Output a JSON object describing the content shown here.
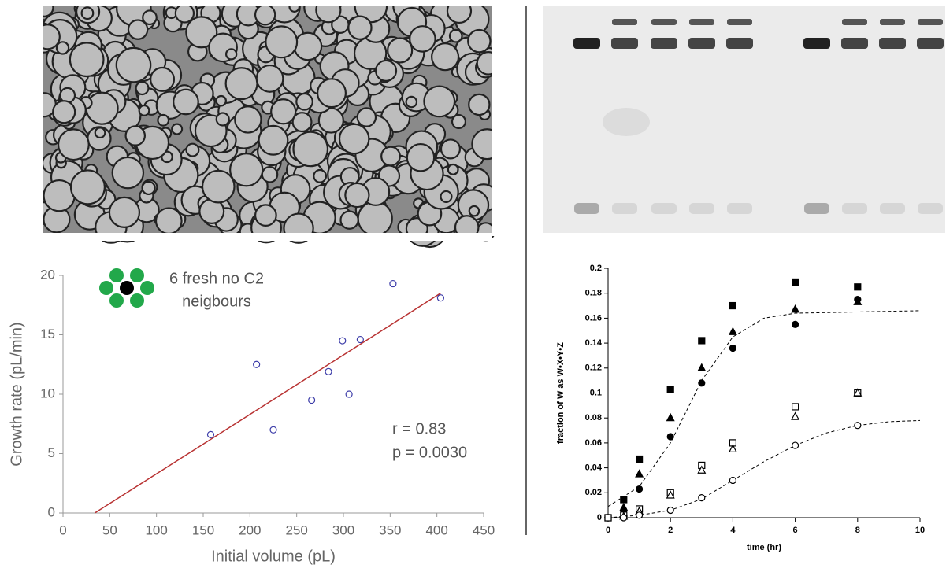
{
  "chart_data": [
    {
      "type": "scatter",
      "xlabel": "Initial volume (pL)",
      "ylabel": "Growth rate (pL/min)",
      "annotation": [
        "6 fresh no C2",
        "neigbours"
      ],
      "stats": [
        "r = 0.83",
        "p = 0.0030"
      ],
      "x": [
        158,
        207,
        225,
        266,
        284,
        299,
        306,
        318,
        353,
        404
      ],
      "values": [
        6.6,
        12.5,
        7.0,
        9.5,
        11.9,
        14.5,
        10.0,
        14.6,
        19.3,
        18.1
      ],
      "color": "#3b3ba8",
      "marker": "circle",
      "filled": false,
      "fit": {
        "x": [
          34,
          404
        ],
        "y": [
          0,
          18.5
        ],
        "color": "#b83232"
      },
      "xlim": [
        0,
        450
      ],
      "xticks": [
        0,
        50,
        100,
        150,
        200,
        250,
        300,
        350,
        400,
        450
      ],
      "ylim": [
        0,
        20
      ],
      "yticks": [
        0,
        5,
        10,
        15,
        20
      ]
    },
    {
      "type": "scatter",
      "xlabel": "time (hr)",
      "ylabel": "fraction of W as W•X•Y•Z",
      "series": [
        {
          "marker": "square",
          "filled": true,
          "x": [
            0,
            0.5,
            1,
            2,
            3,
            4,
            6,
            8
          ],
          "values": [
            0,
            0.0145,
            0.047,
            0.103,
            0.142,
            0.17,
            0.189,
            0.185
          ]
        },
        {
          "marker": "triangle",
          "filled": true,
          "x": [
            0.5,
            1,
            2,
            3,
            4,
            6,
            8
          ],
          "values": [
            0.008,
            0.035,
            0.08,
            0.12,
            0.149,
            0.167,
            0.173
          ]
        },
        {
          "marker": "circle",
          "filled": true,
          "x": [
            0.5,
            1,
            2,
            3,
            4,
            6,
            8
          ],
          "values": [
            0.006,
            0.023,
            0.065,
            0.108,
            0.136,
            0.155,
            0.175
          ]
        },
        {
          "marker": "square",
          "filled": false,
          "x": [
            0,
            0.5,
            1,
            2,
            3,
            4,
            6,
            8
          ],
          "values": [
            0,
            0.002,
            0.007,
            0.02,
            0.042,
            0.06,
            0.089,
            0.1
          ]
        },
        {
          "marker": "triangle",
          "filled": false,
          "x": [
            0.5,
            1,
            2,
            3,
            4,
            6,
            8
          ],
          "values": [
            0.001,
            0.005,
            0.018,
            0.038,
            0.055,
            0.081,
            0.1
          ]
        },
        {
          "marker": "circle",
          "filled": false,
          "x": [
            0.5,
            1,
            2,
            3,
            4,
            6,
            8
          ],
          "values": [
            0,
            0.002,
            0.006,
            0.016,
            0.03,
            0.058,
            0.074
          ]
        }
      ],
      "color": "#000000",
      "curves": [
        {
          "x": [
            0,
            1,
            2,
            3,
            4,
            5,
            6,
            8,
            10
          ],
          "y": [
            0.009,
            0.025,
            0.06,
            0.11,
            0.145,
            0.16,
            0.164,
            0.165,
            0.166
          ]
        },
        {
          "x": [
            0,
            1,
            2,
            3,
            4,
            5,
            6,
            7,
            8,
            9,
            10
          ],
          "y": [
            0,
            0.002,
            0.006,
            0.015,
            0.03,
            0.045,
            0.058,
            0.068,
            0.074,
            0.077,
            0.078
          ]
        }
      ],
      "xlim": [
        0,
        10
      ],
      "xticks": [
        0,
        2,
        4,
        6,
        8,
        10
      ],
      "ylim": [
        0,
        0.2
      ],
      "yticks": [
        0,
        0.02,
        0.04,
        0.06,
        0.08,
        0.1,
        0.12,
        0.14,
        0.16,
        0.18,
        0.2
      ]
    }
  ]
}
